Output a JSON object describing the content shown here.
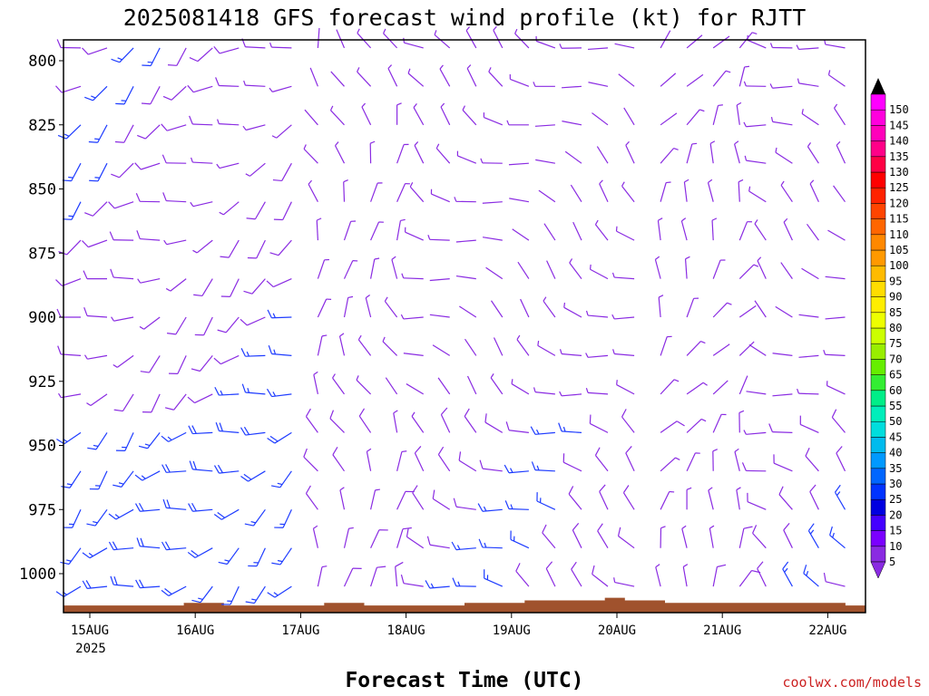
{
  "chart_data": {
    "type": "wind-barb profile",
    "title": "2025081418 GFS forecast wind profile (kt) for RJTT",
    "xlabel": "Forecast Time (UTC)",
    "credit": "coolwx.com/models",
    "x_ticks": [
      "15AUG",
      "16AUG",
      "17AUG",
      "18AUG",
      "19AUG",
      "20AUG",
      "21AUG",
      "22AUG"
    ],
    "x_year": "2025",
    "y_ticks": [
      "800",
      "825",
      "850",
      "875",
      "900",
      "925",
      "950",
      "975",
      "1000"
    ],
    "ylim": [
      790,
      1015
    ],
    "y_inverted": true,
    "levels": [
      795,
      810,
      825,
      840,
      855,
      870,
      885,
      900,
      915,
      930,
      945,
      960,
      975,
      990,
      1005
    ],
    "time_step_hours": 6,
    "start_hour_offset": -6,
    "steps": 33,
    "colorbar": {
      "labels": [
        "5",
        "10",
        "15",
        "20",
        "25",
        "30",
        "35",
        "40",
        "45",
        "50",
        "55",
        "60",
        "65",
        "70",
        "75",
        "80",
        "85",
        "90",
        "95",
        "100",
        "105",
        "110",
        "115",
        "120",
        "125",
        "130",
        "135",
        "140",
        "145",
        "150"
      ],
      "colors": [
        "#8a2be2",
        "#7b00ff",
        "#4400ff",
        "#0000e0",
        "#0033ff",
        "#0066ff",
        "#0099ff",
        "#00bbee",
        "#00dddd",
        "#00eebb",
        "#00ee88",
        "#33ee33",
        "#66ee00",
        "#99ee00",
        "#ccff00",
        "#eeff00",
        "#ffee00",
        "#ffdd00",
        "#ffbb00",
        "#ff9900",
        "#ff8800",
        "#ff6600",
        "#ff4400",
        "#ff2200",
        "#ff0000",
        "#ff0044",
        "#ff0088",
        "#ff00bb",
        "#ff00dd",
        "#ff00ff"
      ]
    },
    "ground_color": "#a0522d",
    "barb_colors": {
      "light": "#8a2be2",
      "moderate": "#1e3cff"
    },
    "wind_directions_by_period": [
      {
        "from_day": 0,
        "to_day": 2.2,
        "dir": 240,
        "speed": 12
      },
      {
        "from_day": 2.2,
        "to_day": 3.2,
        "dir": 350,
        "speed": 6
      },
      {
        "from_day": 3.2,
        "to_day": 5.4,
        "dir": 300,
        "speed": 6
      },
      {
        "from_day": 5.4,
        "to_day": 6.4,
        "dir": 20,
        "speed": 5
      },
      {
        "from_day": 6.4,
        "to_day": 8.1,
        "dir": 300,
        "speed": 6
      }
    ],
    "terrain_top_hpa": [
      1011,
      1011,
      1011,
      1011,
      1011,
      1011,
      1010,
      1010,
      1011,
      1011,
      1011,
      1011,
      1011,
      1010,
      1010,
      1011,
      1011,
      1011,
      1011,
      1011,
      1010,
      1010,
      1010,
      1009,
      1009,
      1009,
      1009,
      1008,
      1009,
      1009,
      1010,
      1010,
      1010,
      1010,
      1010,
      1010,
      1010,
      1010,
      1010,
      1011
    ]
  }
}
